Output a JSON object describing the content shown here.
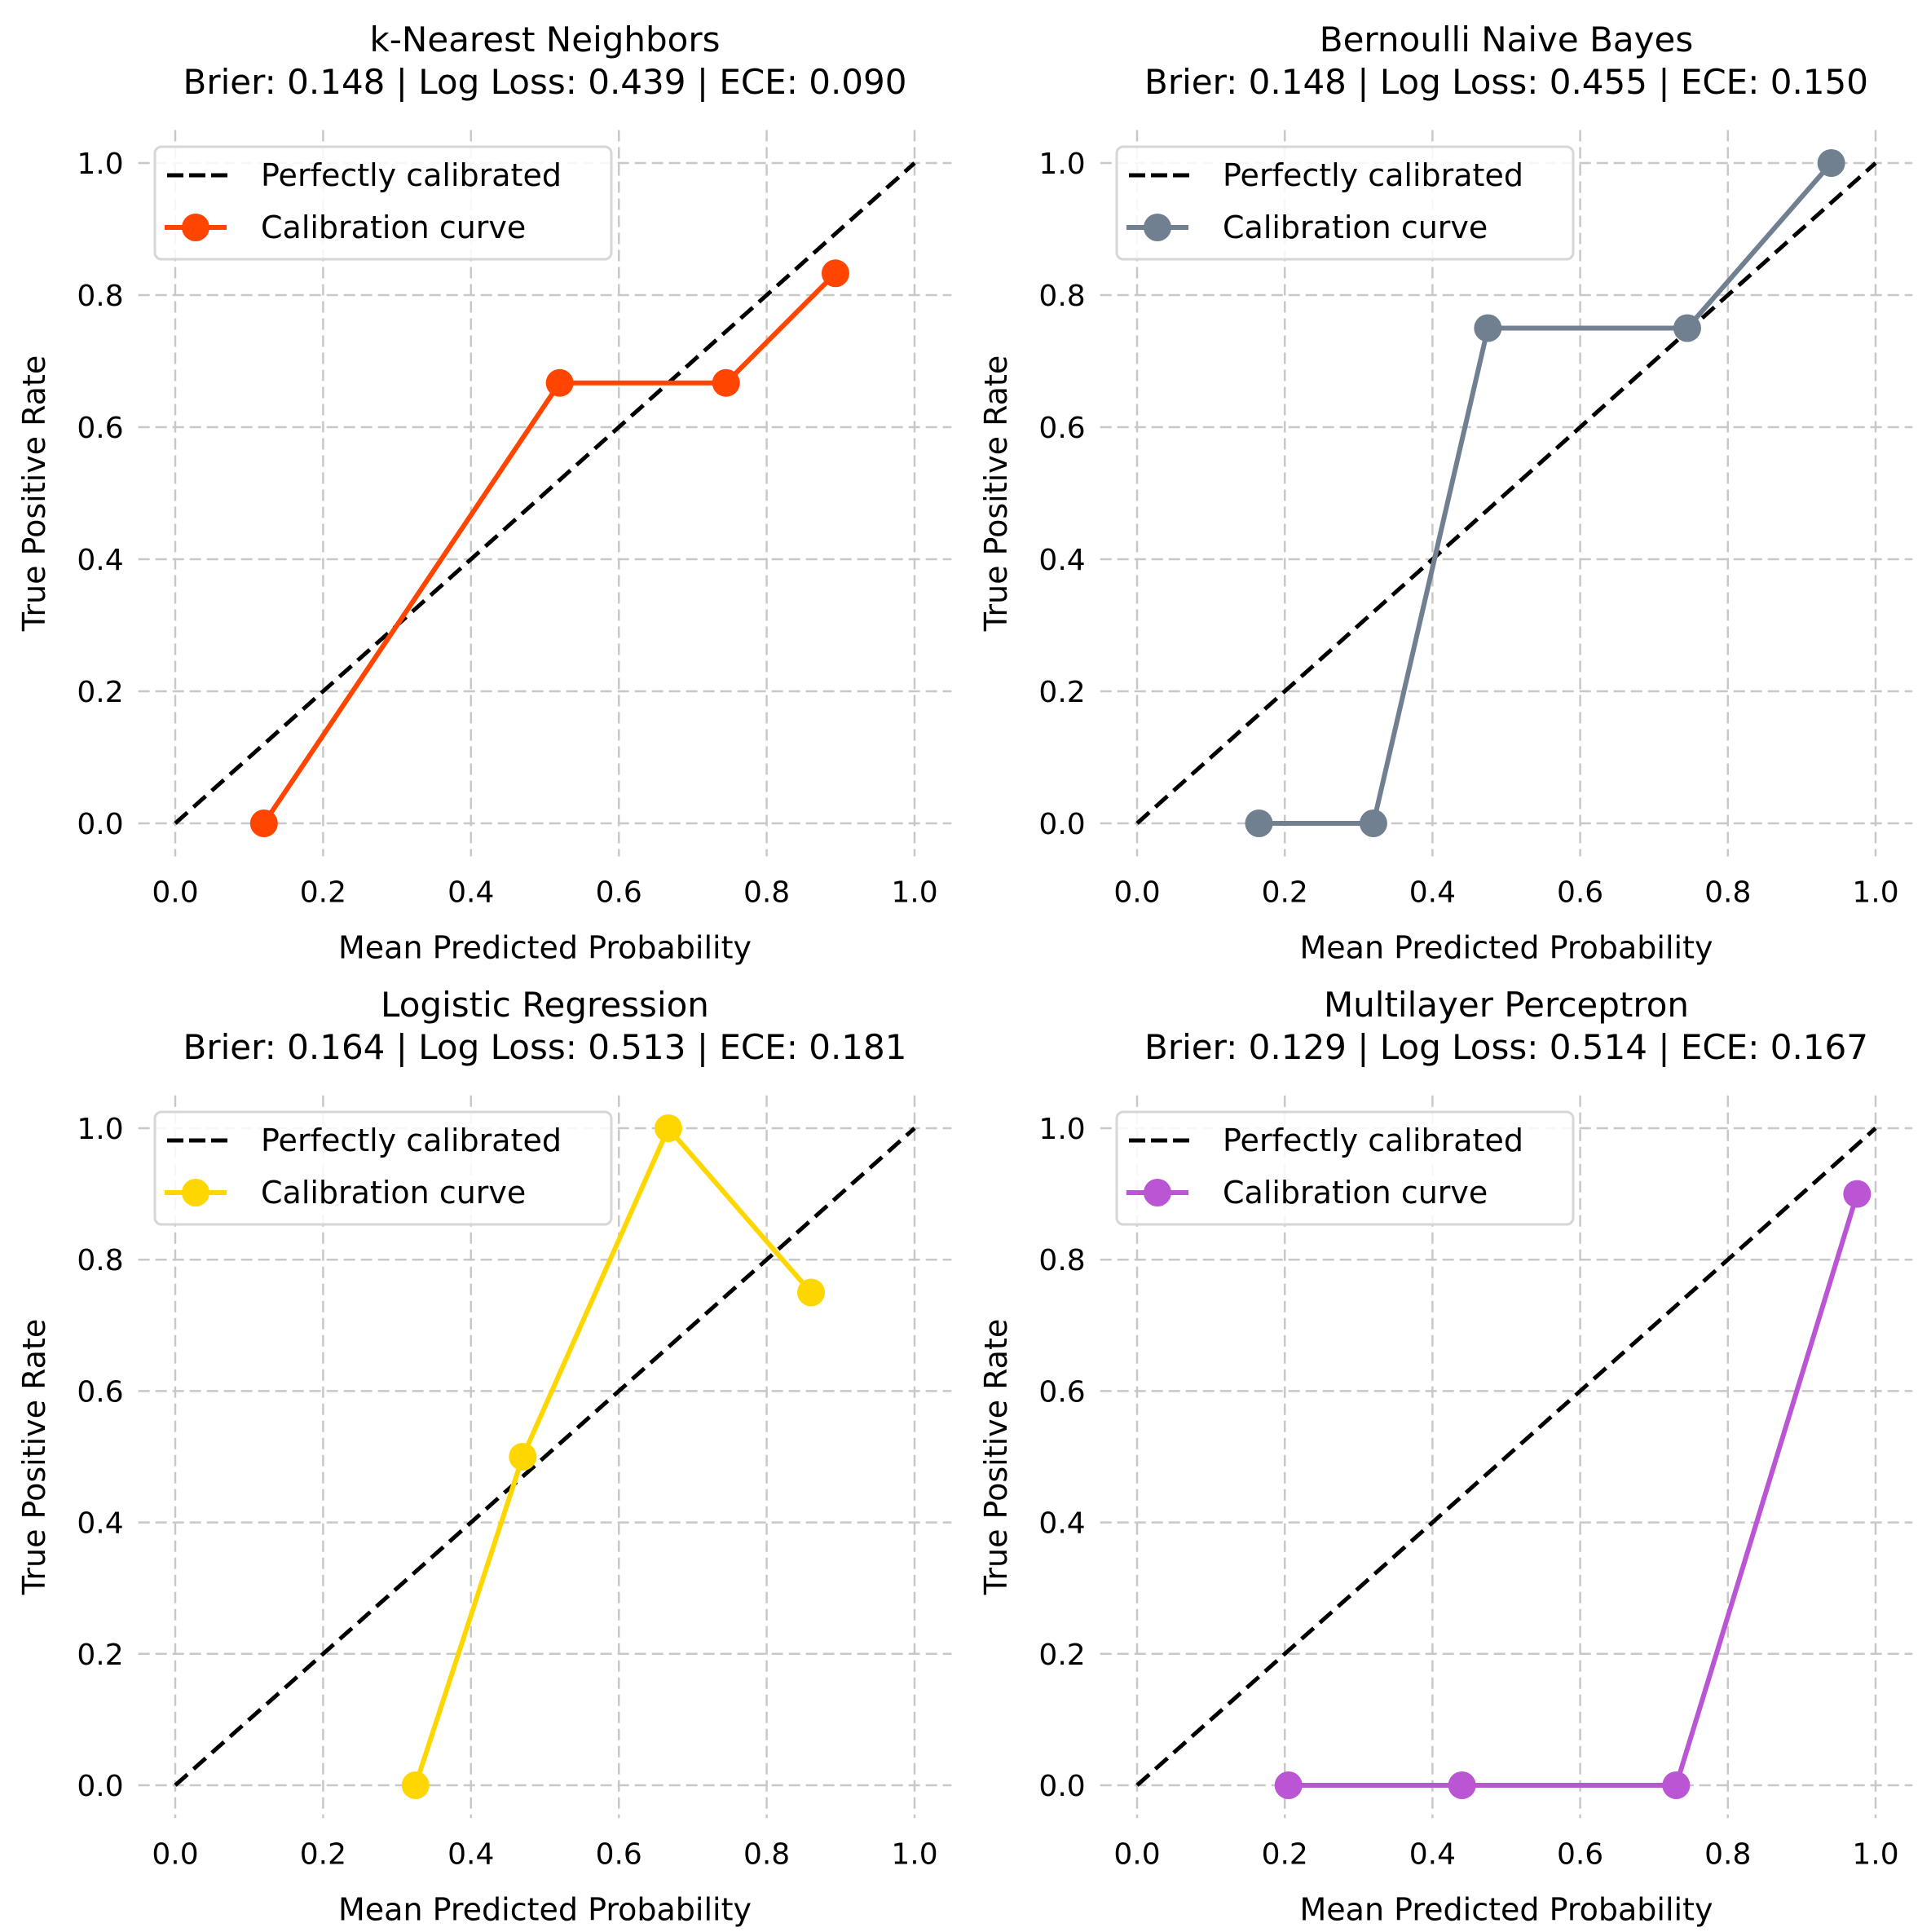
{
  "chart_data": [
    {
      "type": "line",
      "title": "k-Nearest Neighbors",
      "subtitle": "Brier: 0.148 | Log Loss: 0.439 | ECE: 0.090",
      "metrics": {
        "brier": 0.148,
        "log_loss": 0.439,
        "ece": 0.09
      },
      "xlabel": "Mean Predicted Probability",
      "ylabel": "True Positive Rate",
      "xlim": [
        0.0,
        1.0
      ],
      "ylim": [
        0.0,
        1.0
      ],
      "xticks": [
        "0.0",
        "0.2",
        "0.4",
        "0.6",
        "0.8",
        "1.0"
      ],
      "yticks": [
        "0.0",
        "0.2",
        "0.4",
        "0.6",
        "0.8",
        "1.0"
      ],
      "grid": true,
      "legend_position": "top-left",
      "color": "#FF4500",
      "series": [
        {
          "name": "Perfectly calibrated",
          "style": "dashed",
          "color": "#000000",
          "x": [
            0.0,
            1.0
          ],
          "y": [
            0.0,
            1.0
          ]
        },
        {
          "name": "Calibration curve",
          "style": "line-marker",
          "color": "#FF4500",
          "x": [
            0.12,
            0.52,
            0.745,
            0.893
          ],
          "y": [
            0.0,
            0.667,
            0.667,
            0.833
          ]
        }
      ]
    },
    {
      "type": "line",
      "title": "Bernoulli Naive Bayes",
      "subtitle": "Brier: 0.148 | Log Loss: 0.455 | ECE: 0.150",
      "metrics": {
        "brier": 0.148,
        "log_loss": 0.455,
        "ece": 0.15
      },
      "xlabel": "Mean Predicted Probability",
      "ylabel": "True Positive Rate",
      "xlim": [
        0.0,
        1.0
      ],
      "ylim": [
        0.0,
        1.0
      ],
      "xticks": [
        "0.0",
        "0.2",
        "0.4",
        "0.6",
        "0.8",
        "1.0"
      ],
      "yticks": [
        "0.0",
        "0.2",
        "0.4",
        "0.6",
        "0.8",
        "1.0"
      ],
      "grid": true,
      "legend_position": "top-left",
      "color": "#708090",
      "series": [
        {
          "name": "Perfectly calibrated",
          "style": "dashed",
          "color": "#000000",
          "x": [
            0.0,
            1.0
          ],
          "y": [
            0.0,
            1.0
          ]
        },
        {
          "name": "Calibration curve",
          "style": "line-marker",
          "color": "#708090",
          "x": [
            0.165,
            0.32,
            0.475,
            0.745,
            0.94
          ],
          "y": [
            0.0,
            0.0,
            0.75,
            0.75,
            1.0
          ]
        }
      ]
    },
    {
      "type": "line",
      "title": "Logistic Regression",
      "subtitle": "Brier: 0.164 | Log Loss: 0.513 | ECE: 0.181",
      "metrics": {
        "brier": 0.164,
        "log_loss": 0.513,
        "ece": 0.181
      },
      "xlabel": "Mean Predicted Probability",
      "ylabel": "True Positive Rate",
      "xlim": [
        0.0,
        1.0
      ],
      "ylim": [
        0.0,
        1.0
      ],
      "xticks": [
        "0.0",
        "0.2",
        "0.4",
        "0.6",
        "0.8",
        "1.0"
      ],
      "yticks": [
        "0.0",
        "0.2",
        "0.4",
        "0.6",
        "0.8",
        "1.0"
      ],
      "grid": true,
      "legend_position": "top-left",
      "color": "#FFD700",
      "series": [
        {
          "name": "Perfectly calibrated",
          "style": "dashed",
          "color": "#000000",
          "x": [
            0.0,
            1.0
          ],
          "y": [
            0.0,
            1.0
          ]
        },
        {
          "name": "Calibration curve",
          "style": "line-marker",
          "color": "#FFD700",
          "x": [
            0.325,
            0.47,
            0.667,
            0.86
          ],
          "y": [
            0.0,
            0.5,
            1.0,
            0.75
          ]
        }
      ]
    },
    {
      "type": "line",
      "title": "Multilayer Perceptron",
      "subtitle": "Brier: 0.129 | Log Loss: 0.514 | ECE: 0.167",
      "metrics": {
        "brier": 0.129,
        "log_loss": 0.514,
        "ece": 0.167
      },
      "xlabel": "Mean Predicted Probability",
      "ylabel": "True Positive Rate",
      "xlim": [
        0.0,
        1.0
      ],
      "ylim": [
        0.0,
        1.0
      ],
      "xticks": [
        "0.0",
        "0.2",
        "0.4",
        "0.6",
        "0.8",
        "1.0"
      ],
      "yticks": [
        "0.0",
        "0.2",
        "0.4",
        "0.6",
        "0.8",
        "1.0"
      ],
      "grid": true,
      "legend_position": "top-left",
      "color": "#BA55D3",
      "series": [
        {
          "name": "Perfectly calibrated",
          "style": "dashed",
          "color": "#000000",
          "x": [
            0.0,
            1.0
          ],
          "y": [
            0.0,
            1.0
          ]
        },
        {
          "name": "Calibration curve",
          "style": "line-marker",
          "color": "#BA55D3",
          "x": [
            0.205,
            0.44,
            0.73,
            0.975
          ],
          "y": [
            0.0,
            0.0,
            0.0,
            0.9
          ]
        }
      ]
    }
  ]
}
